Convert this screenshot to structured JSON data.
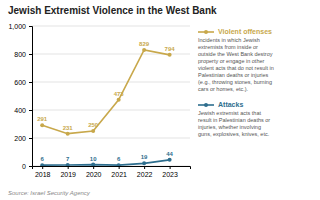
{
  "chart_data": {
    "type": "line",
    "title": "Jewish Extremist Violence in the West Bank",
    "x": [
      2018,
      2019,
      2020,
      2021,
      2022,
      2023
    ],
    "series": [
      {
        "name": "Violent offenses",
        "color": "#c8a84b",
        "values": [
          291,
          231,
          250,
          473,
          829,
          794
        ],
        "description": "Incidents in which Jewish\nextremists from inside or\noutside the West Bank destroy\nproperty or engage in other\nviolent acts that do not result in\nPalestinian deaths or injuries\n(e.g., throwing stones, burning\ncars or homes, etc.)."
      },
      {
        "name": "Attacks",
        "color": "#2e6e8e",
        "values": [
          6,
          7,
          10,
          6,
          19,
          44
        ],
        "description": "Jewish extremist acts that\nresult in Palestinian deaths or\ninjuries, whether involving\nguns, explosives, knives, etc."
      }
    ],
    "xlim": [
      2017.6,
      2023.8
    ],
    "xticks": [
      2018,
      2019,
      2020,
      2021,
      2022,
      2023
    ],
    "ylim": [
      0,
      1000
    ],
    "yticks": [
      0,
      200,
      400,
      600,
      800,
      {
        "value": 1000,
        "label": "1,000"
      }
    ],
    "grid": true,
    "data_labels": true,
    "marker": "circle",
    "source": "Source: Israel Security Agency"
  }
}
